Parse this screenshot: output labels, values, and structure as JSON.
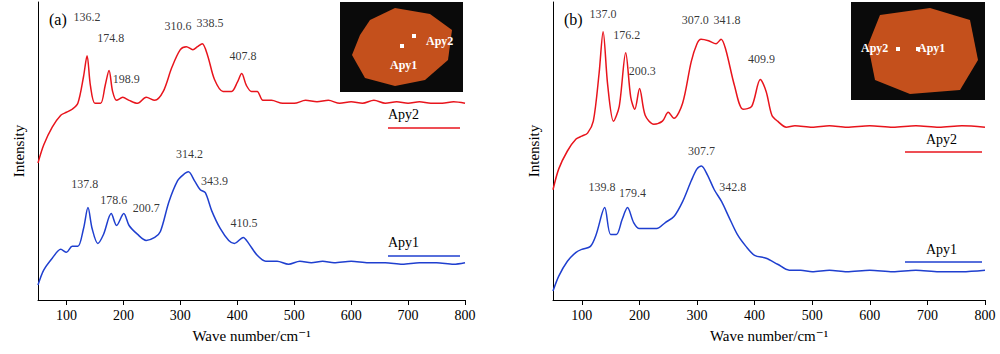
{
  "chart_data": [
    {
      "type": "line",
      "title": "(a)",
      "x_label": "Wave number/cm⁻¹",
      "y_label": "Intensity",
      "xlim": [
        50,
        800
      ],
      "xticks": [
        100,
        200,
        300,
        400,
        500,
        600,
        700,
        800
      ],
      "ylim": [
        0,
        100
      ],
      "tick_labels": "x",
      "grid": false,
      "inset_labels": [
        "Apy1",
        "Apy2"
      ],
      "series": [
        {
          "name": "Apy2",
          "color": "#e8141c",
          "x": [
            50,
            60,
            75,
            90,
            100,
            110,
            120,
            130,
            136.2,
            142,
            150,
            160,
            168,
            174.8,
            181,
            188,
            198.9,
            210,
            225,
            240,
            255,
            270,
            285,
            300,
            310.6,
            322,
            330,
            338.5,
            348,
            360,
            375,
            390,
            400,
            407.8,
            416,
            425,
            435,
            445,
            460,
            480,
            500,
            520,
            540,
            560,
            580,
            600,
            620,
            640,
            660,
            680,
            700,
            720,
            740,
            760,
            780,
            800
          ],
          "values": [
            46,
            52,
            58,
            62,
            63,
            64,
            66,
            75,
            82,
            72,
            66,
            66,
            72,
            77,
            70,
            67,
            68,
            67,
            66,
            68,
            67,
            70,
            78,
            84,
            85,
            84,
            85,
            86,
            82,
            74,
            70,
            70,
            73,
            76,
            72,
            70,
            70,
            67,
            67,
            66,
            66,
            67,
            66.5,
            67,
            66,
            66.5,
            66,
            67,
            66,
            66.5,
            66,
            66.5,
            66,
            66,
            66.5,
            66
          ]
        },
        {
          "name": "Apy1",
          "color": "#1f3fcf",
          "x": [
            50,
            60,
            75,
            90,
            100,
            110,
            120,
            130,
            137.8,
            145,
            155,
            165,
            178.6,
            188,
            200.7,
            210,
            225,
            240,
            255,
            265,
            280,
            295,
            305,
            314.2,
            325,
            335,
            343.9,
            355,
            370,
            385,
            395,
            410.5,
            420,
            435,
            450,
            470,
            490,
            510,
            530,
            550,
            570,
            600,
            630,
            660,
            690,
            720,
            750,
            780,
            800
          ],
          "values": [
            5,
            10,
            14,
            17,
            16,
            18,
            18,
            24,
            31,
            24,
            19,
            22,
            29,
            25,
            29,
            25,
            22,
            20,
            21,
            23,
            33,
            40,
            42,
            43,
            40,
            37,
            36,
            30,
            24,
            20,
            19,
            21,
            19,
            15,
            13,
            13,
            12,
            13,
            12.5,
            13,
            12.5,
            13,
            12.5,
            12.5,
            12,
            12.5,
            12.5,
            12,
            12.5
          ]
        }
      ],
      "annotations": [
        {
          "text": "136.2",
          "x": 136,
          "y": 95
        },
        {
          "text": "174.8",
          "x": 178,
          "y": 88
        },
        {
          "text": "198.9",
          "x": 205,
          "y": 74
        },
        {
          "text": "310.6",
          "x": 296,
          "y": 92
        },
        {
          "text": "338.5",
          "x": 352,
          "y": 93
        },
        {
          "text": "407.8",
          "x": 410,
          "y": 82
        },
        {
          "text": "137.8",
          "x": 132,
          "y": 39
        },
        {
          "text": "178.6",
          "x": 183,
          "y": 33.5
        },
        {
          "text": "200.7",
          "x": 240,
          "y": 31
        },
        {
          "text": "314.2",
          "x": 316,
          "y": 49
        },
        {
          "text": "343.9",
          "x": 360,
          "y": 40
        },
        {
          "text": "410.5",
          "x": 412,
          "y": 26
        }
      ]
    },
    {
      "type": "line",
      "title": "(b)",
      "x_label": "Wave number/cm⁻¹",
      "y_label": "Intensity",
      "xlim": [
        50,
        800
      ],
      "xticks": [
        100,
        200,
        300,
        400,
        500,
        600,
        700,
        800
      ],
      "ylim": [
        0,
        100
      ],
      "tick_labels": "x",
      "grid": false,
      "inset_labels": [
        "Apy2",
        "Apy1"
      ],
      "series": [
        {
          "name": "Apy2",
          "color": "#e8141c",
          "x": [
            50,
            60,
            75,
            90,
            100,
            110,
            120,
            130,
            137,
            145,
            155,
            165,
            176.2,
            185,
            192,
            200.3,
            210,
            225,
            240,
            250,
            260,
            275,
            290,
            300,
            307,
            320,
            333,
            341.8,
            350,
            365,
            380,
            395,
            409.9,
            420,
            430,
            440,
            455,
            470,
            500,
            530,
            560,
            600,
            640,
            680,
            720,
            760,
            800
          ],
          "values": [
            37,
            44,
            50,
            54,
            55,
            56,
            60,
            76,
            90,
            72,
            60,
            65,
            83,
            68,
            64,
            71,
            62,
            59,
            60,
            63,
            61,
            66,
            80,
            86,
            87.5,
            87,
            86,
            87.5,
            84,
            72,
            64,
            65,
            74,
            70,
            62,
            60,
            58,
            58.5,
            58,
            58.5,
            58,
            58.5,
            58,
            58.5,
            58,
            58.5,
            58
          ]
        },
        {
          "name": "Apy1",
          "color": "#1f3fcf",
          "x": [
            50,
            60,
            75,
            90,
            100,
            115,
            125,
            139.8,
            150,
            160,
            170,
            179.4,
            190,
            200,
            215,
            230,
            245,
            260,
            275,
            290,
            300,
            307.7,
            318,
            330,
            342.8,
            355,
            370,
            385,
            400,
            420,
            440,
            460,
            480,
            500,
            530,
            560,
            600,
            640,
            680,
            720,
            760,
            800
          ],
          "values": [
            3,
            8,
            13,
            16,
            17,
            18,
            22,
            31,
            22,
            22,
            27,
            31,
            26,
            24,
            24,
            24,
            26,
            28,
            33,
            40,
            44,
            45,
            42,
            37,
            33,
            28,
            22,
            18,
            15,
            14,
            12,
            10,
            10,
            9.5,
            10,
            9.5,
            10,
            9.5,
            10,
            9.5,
            9.5,
            10
          ]
        }
      ],
      "annotations": [
        {
          "text": "137.0",
          "x": 137,
          "y": 96
        },
        {
          "text": "176.2",
          "x": 178,
          "y": 89
        },
        {
          "text": "200.3",
          "x": 205,
          "y": 77
        },
        {
          "text": "307.0",
          "x": 297,
          "y": 94
        },
        {
          "text": "341.8",
          "x": 352,
          "y": 94
        },
        {
          "text": "409.9",
          "x": 412,
          "y": 81
        },
        {
          "text": "139.8",
          "x": 135,
          "y": 38
        },
        {
          "text": "179.4",
          "x": 188,
          "y": 36
        },
        {
          "text": "307.7",
          "x": 308,
          "y": 50
        },
        {
          "text": "342.8",
          "x": 362,
          "y": 38
        }
      ]
    }
  ]
}
